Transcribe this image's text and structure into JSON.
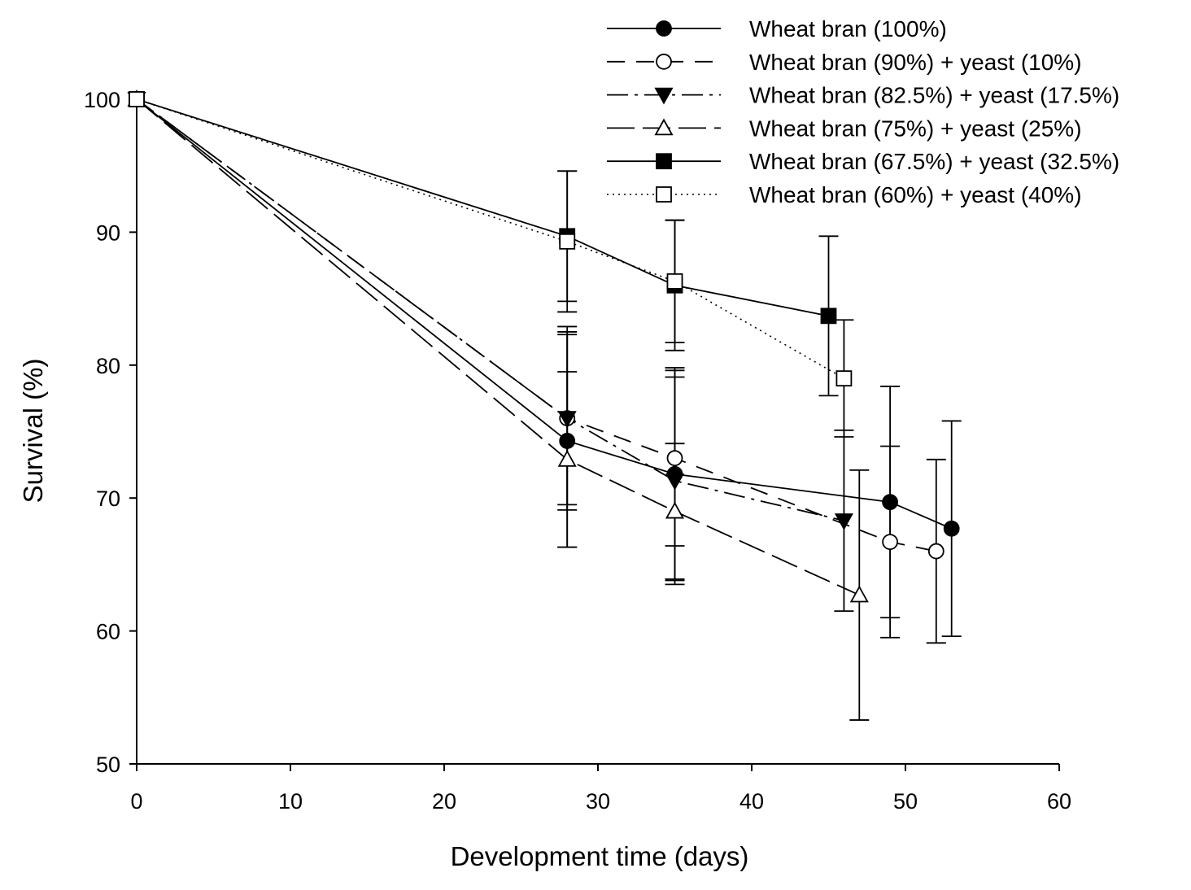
{
  "chart_data": {
    "type": "line",
    "title": "",
    "xlabel": "Development time (days)",
    "ylabel": "Survival (%)",
    "xlim": [
      0,
      60
    ],
    "ylim": [
      50,
      100
    ],
    "xticks": [
      0,
      10,
      20,
      30,
      40,
      50,
      60
    ],
    "yticks": [
      50,
      60,
      70,
      80,
      90,
      100
    ],
    "grid": false,
    "legend_position": "top-right",
    "series": [
      {
        "name": "Wheat bran (100%)",
        "marker": "circle-filled",
        "line_style": "solid",
        "points": [
          {
            "x": 0,
            "y": 100,
            "err": null
          },
          {
            "x": 28,
            "y": 74.3,
            "err": 8.0
          },
          {
            "x": 35,
            "y": 71.8,
            "err": 8.0
          },
          {
            "x": 49,
            "y": 69.7,
            "err": 8.7
          },
          {
            "x": 53,
            "y": 67.7,
            "err": 8.1
          }
        ]
      },
      {
        "name": "Wheat bran (90%) + yeast (10%)",
        "marker": "circle-open",
        "line_style": "dashed",
        "points": [
          {
            "x": 0,
            "y": 100,
            "err": null
          },
          {
            "x": 28,
            "y": 76.0,
            "err": 6.9
          },
          {
            "x": 35,
            "y": 73.0,
            "err": 6.6
          },
          {
            "x": 49,
            "y": 66.7,
            "err": 7.2
          },
          {
            "x": 52,
            "y": 66.0,
            "err": 6.9
          }
        ]
      },
      {
        "name": "Wheat bran (82.5%) + yeast (17.5%)",
        "marker": "triangle-down-filled",
        "line_style": "dashdot",
        "points": [
          {
            "x": 0,
            "y": 100,
            "err": null
          },
          {
            "x": 28,
            "y": 76.0,
            "err": 6.5
          },
          {
            "x": 35,
            "y": 71.3,
            "err": 7.8
          },
          {
            "x": 46,
            "y": 68.3,
            "err": 6.8
          }
        ]
      },
      {
        "name": "Wheat bran (75%) + yeast (25%)",
        "marker": "triangle-up-open",
        "line_style": "longdash",
        "points": [
          {
            "x": 0,
            "y": 100,
            "err": null
          },
          {
            "x": 28,
            "y": 72.9,
            "err": 6.6
          },
          {
            "x": 35,
            "y": 69.0,
            "err": 5.1
          },
          {
            "x": 47,
            "y": 62.7,
            "err": 9.4
          }
        ]
      },
      {
        "name": "Wheat bran (67.5%) + yeast (32.5%)",
        "marker": "square-filled",
        "line_style": "solid",
        "points": [
          {
            "x": 0,
            "y": 100,
            "err": null
          },
          {
            "x": 28,
            "y": 89.7,
            "err": 4.9
          },
          {
            "x": 35,
            "y": 86.0,
            "err": 4.9
          },
          {
            "x": 45,
            "y": 83.7,
            "err": 6.0
          }
        ]
      },
      {
        "name": "Wheat bran (60%) + yeast (40%)",
        "marker": "square-open",
        "line_style": "dotted",
        "points": [
          {
            "x": 0,
            "y": 100,
            "err": null
          },
          {
            "x": 28,
            "y": 89.3,
            "err": 5.3
          },
          {
            "x": 35,
            "y": 86.3,
            "err": 4.6
          },
          {
            "x": 46,
            "y": 79.0,
            "err": 4.4
          }
        ]
      }
    ]
  }
}
